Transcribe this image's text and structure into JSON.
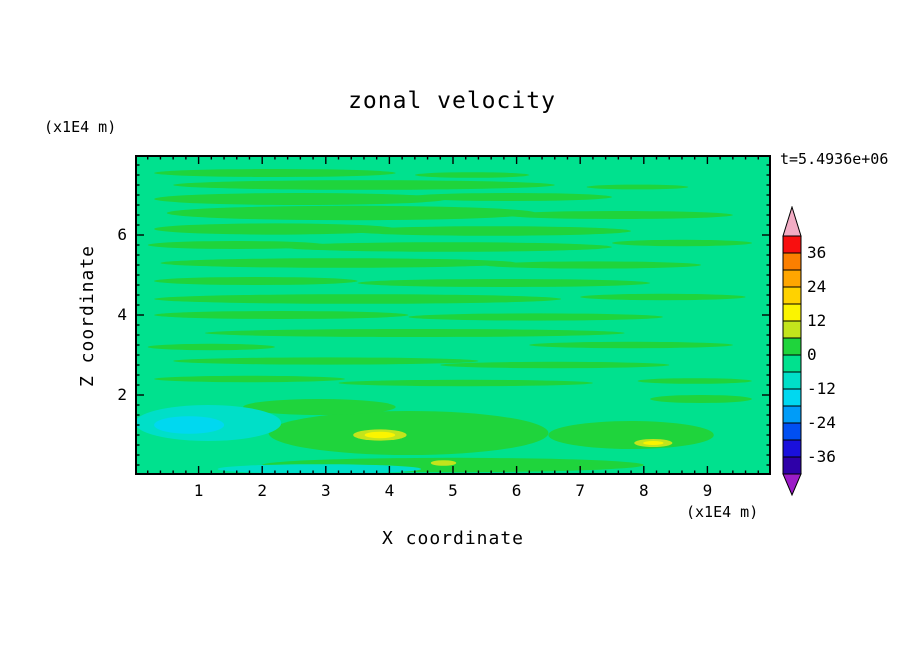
{
  "title": "zonal velocity",
  "timestamp": "t=5.4936e+06",
  "axes": {
    "x_label": "X coordinate",
    "x_unit": "(x1E4 m)",
    "y_label": "Z coordinate",
    "y_unit": "(x1E4 m)",
    "x_ticks": [
      "1",
      "2",
      "3",
      "4",
      "5",
      "6",
      "7",
      "8",
      "9"
    ],
    "y_ticks": [
      "2",
      "4",
      "6"
    ]
  },
  "colorbar": {
    "labels": [
      "36",
      "24",
      "12",
      "0",
      "-12",
      "-24",
      "-36"
    ],
    "top_arrow_color": "#F2ACC4",
    "bottom_arrow_color": "#9C1CC8",
    "segments": [
      "#F80F0F",
      "#FC7F00",
      "#FFA600",
      "#FFD200",
      "#FBF400",
      "#C3E41C",
      "#1FD43C",
      "#00E18E",
      "#00DFC8",
      "#00D8F0",
      "#009CF8",
      "#004FF2",
      "#1A10DC",
      "#2E00A8"
    ]
  },
  "chart_data": {
    "type": "heatmap",
    "title": "zonal velocity",
    "xlabel": "X coordinate (x1E4 m)",
    "ylabel": "Z coordinate (x1E4 m)",
    "time_label": "t=5.4936e+06",
    "x_range": [
      0,
      9.97
    ],
    "z_range": [
      0,
      8
    ],
    "contour_levels": [
      -42,
      -36,
      -30,
      -24,
      -18,
      -12,
      -6,
      0,
      6,
      12,
      18,
      24,
      30,
      36,
      42
    ],
    "legend_position": "right",
    "base_value_range": [
      -6,
      0
    ],
    "base_color": "#00E18E",
    "layers": [
      {
        "name": "positive-streak",
        "value_range": [
          0,
          6
        ],
        "color": "#1FD43C",
        "ellipses": [
          [
            2.2,
            7.55,
            1.9,
            0.1
          ],
          [
            5.3,
            7.5,
            0.9,
            0.07
          ],
          [
            3.6,
            7.25,
            3.0,
            0.12
          ],
          [
            7.9,
            7.2,
            0.8,
            0.06
          ],
          [
            2.6,
            6.9,
            2.3,
            0.15
          ],
          [
            5.9,
            6.95,
            1.6,
            0.1
          ],
          [
            3.4,
            6.55,
            2.9,
            0.18
          ],
          [
            7.6,
            6.5,
            1.8,
            0.1
          ],
          [
            2.2,
            6.15,
            1.9,
            0.14
          ],
          [
            5.6,
            6.1,
            2.2,
            0.12
          ],
          [
            1.6,
            5.75,
            1.4,
            0.1
          ],
          [
            4.9,
            5.7,
            2.6,
            0.12
          ],
          [
            8.6,
            5.8,
            1.1,
            0.08
          ],
          [
            3.2,
            5.3,
            2.8,
            0.12
          ],
          [
            7.2,
            5.25,
            1.7,
            0.09
          ],
          [
            1.9,
            4.85,
            1.6,
            0.1
          ],
          [
            5.8,
            4.8,
            2.3,
            0.1
          ],
          [
            3.5,
            4.4,
            3.2,
            0.12
          ],
          [
            8.3,
            4.45,
            1.3,
            0.08
          ],
          [
            2.3,
            4.0,
            2.0,
            0.1
          ],
          [
            6.3,
            3.95,
            2.0,
            0.09
          ],
          [
            4.4,
            3.55,
            3.3,
            0.1
          ],
          [
            1.2,
            3.2,
            1.0,
            0.08
          ],
          [
            7.8,
            3.25,
            1.6,
            0.08
          ],
          [
            3.0,
            2.85,
            2.4,
            0.09
          ],
          [
            6.6,
            2.75,
            1.8,
            0.08
          ],
          [
            1.8,
            2.4,
            1.5,
            0.08
          ],
          [
            5.2,
            2.3,
            2.0,
            0.08
          ],
          [
            8.8,
            2.35,
            0.9,
            0.07
          ],
          [
            4.3,
            1.05,
            2.2,
            0.55
          ],
          [
            7.8,
            1.0,
            1.3,
            0.35
          ],
          [
            2.9,
            1.7,
            1.2,
            0.2
          ],
          [
            5.0,
            0.25,
            3.0,
            0.18
          ],
          [
            8.9,
            1.9,
            0.8,
            0.1
          ]
        ]
      },
      {
        "name": "cold-patch-outer",
        "value_range": [
          -12,
          -6
        ],
        "color": "#00DFC8",
        "ellipses": [
          [
            1.15,
            1.3,
            1.15,
            0.45
          ],
          [
            2.9,
            0.15,
            1.6,
            0.12
          ]
        ]
      },
      {
        "name": "cold-patch-inner",
        "value_range": [
          -18,
          -12
        ],
        "color": "#00D8F0",
        "ellipses": [
          [
            0.85,
            1.25,
            0.55,
            0.22
          ]
        ]
      },
      {
        "name": "warm-spot-ring",
        "value_range": [
          6,
          12
        ],
        "color": "#C3E41C",
        "ellipses": [
          [
            3.85,
            1.0,
            0.42,
            0.14
          ],
          [
            8.15,
            0.8,
            0.3,
            0.1
          ],
          [
            4.85,
            0.3,
            0.2,
            0.07
          ]
        ]
      },
      {
        "name": "warm-spot-core",
        "value_range": [
          12,
          18
        ],
        "color": "#FBF400",
        "ellipses": [
          [
            3.85,
            1.0,
            0.24,
            0.08
          ],
          [
            8.15,
            0.8,
            0.16,
            0.05
          ]
        ]
      }
    ]
  }
}
